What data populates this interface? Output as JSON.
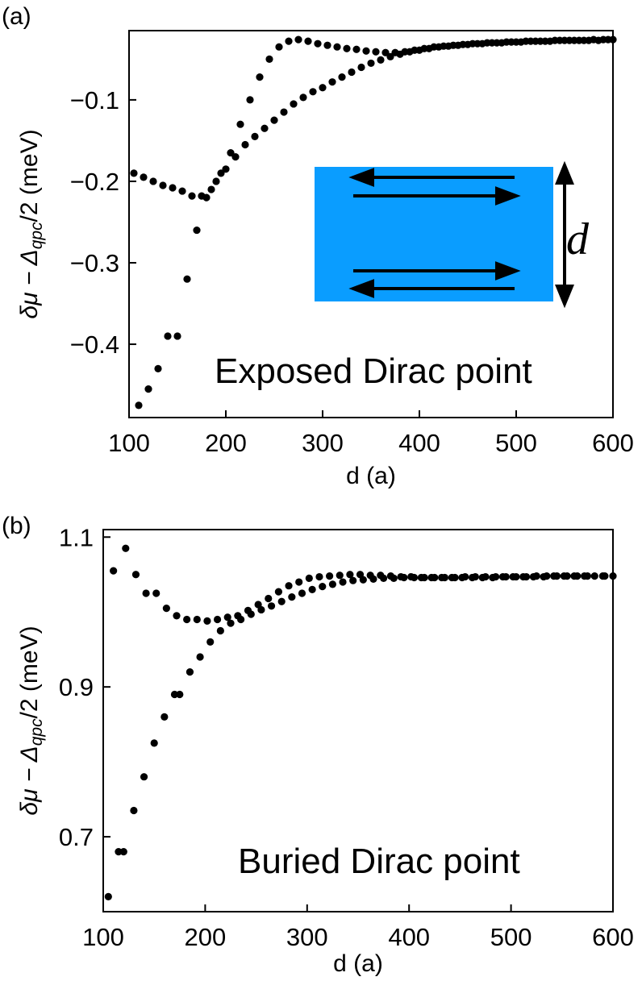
{
  "chart_data": [
    {
      "type": "scatter",
      "panel_label": "(a)",
      "title": "",
      "xlabel": "d (a)",
      "ylabel": "δμ − Δqpc/2 (meV)",
      "ylabel_parts": {
        "pre": "δμ − Δ",
        "sub": "qpc",
        "post": "/2 (meV)"
      },
      "xlim": [
        100,
        600
      ],
      "ylim": [
        -0.49,
        -0.015
      ],
      "xticks": [
        100,
        200,
        300,
        400,
        500,
        600
      ],
      "xtick_labels": [
        "100",
        "200",
        "300",
        "400",
        "500",
        "600"
      ],
      "yticks": [
        -0.4,
        -0.3,
        -0.2,
        -0.1
      ],
      "ytick_labels": [
        "−0.4",
        "−0.3",
        "−0.2",
        "−0.1"
      ],
      "grid": false,
      "legend": "none",
      "annotation": "Exposed Dirac point",
      "inset": {
        "description": "edge channel schematic",
        "fill_color": "#0a9dff",
        "label": "d"
      },
      "series": [
        {
          "color": "#000000",
          "x": [
            105,
            115,
            125,
            135,
            145,
            155,
            165,
            175,
            185,
            195,
            205,
            215,
            225,
            235,
            245,
            255,
            265,
            275,
            285,
            295,
            305,
            315,
            325,
            335,
            345,
            355,
            365,
            375,
            385,
            395,
            405,
            415,
            425,
            435,
            445,
            455,
            465,
            475,
            485,
            495,
            505,
            515,
            525,
            535,
            545,
            555,
            565,
            575,
            585,
            595
          ],
          "y": [
            -0.19,
            -0.195,
            -0.2,
            -0.205,
            -0.208,
            -0.212,
            -0.218,
            -0.218,
            -0.21,
            -0.19,
            -0.165,
            -0.13,
            -0.1,
            -0.072,
            -0.05,
            -0.035,
            -0.028,
            -0.026,
            -0.028,
            -0.031,
            -0.033,
            -0.035,
            -0.037,
            -0.038,
            -0.04,
            -0.041,
            -0.042,
            -0.042,
            -0.041,
            -0.039,
            -0.037,
            -0.035,
            -0.034,
            -0.033,
            -0.032,
            -0.031,
            -0.031,
            -0.03,
            -0.03,
            -0.029,
            -0.029,
            -0.028,
            -0.028,
            -0.028,
            -0.027,
            -0.027,
            -0.027,
            -0.027,
            -0.027,
            -0.026
          ]
        },
        {
          "color": "#000000",
          "x": [
            110,
            120,
            130,
            140,
            150,
            160,
            170,
            180,
            190,
            200,
            210,
            220,
            230,
            240,
            250,
            260,
            270,
            280,
            290,
            300,
            310,
            320,
            330,
            340,
            350,
            360,
            370,
            380,
            390,
            400,
            410,
            420,
            430,
            440,
            450,
            460,
            470,
            480,
            490,
            500,
            510,
            520,
            530,
            540,
            550,
            560,
            570,
            580,
            590,
            600
          ],
          "y": [
            -0.475,
            -0.455,
            -0.43,
            -0.39,
            -0.39,
            -0.32,
            -0.26,
            -0.22,
            -0.2,
            -0.185,
            -0.17,
            -0.155,
            -0.145,
            -0.135,
            -0.125,
            -0.115,
            -0.105,
            -0.097,
            -0.09,
            -0.085,
            -0.078,
            -0.072,
            -0.066,
            -0.06,
            -0.055,
            -0.051,
            -0.047,
            -0.044,
            -0.041,
            -0.039,
            -0.037,
            -0.035,
            -0.034,
            -0.033,
            -0.032,
            -0.031,
            -0.03,
            -0.03,
            -0.029,
            -0.029,
            -0.028,
            -0.028,
            -0.028,
            -0.027,
            -0.027,
            -0.027,
            -0.027,
            -0.026,
            -0.026,
            -0.026
          ]
        }
      ]
    },
    {
      "type": "scatter",
      "panel_label": "(b)",
      "title": "",
      "xlabel": "d (a)",
      "ylabel": "δμ − Δqpc/2 (meV)",
      "ylabel_parts": {
        "pre": "δμ − Δ",
        "sub": "qpc",
        "post": "/2 (meV)"
      },
      "xlim": [
        100,
        600
      ],
      "ylim": [
        0.6,
        1.11
      ],
      "xticks": [
        100,
        200,
        300,
        400,
        500,
        600
      ],
      "xtick_labels": [
        "100",
        "200",
        "300",
        "400",
        "500",
        "600"
      ],
      "yticks": [
        0.7,
        0.9,
        1.1
      ],
      "ytick_labels": [
        "0.7",
        "0.9",
        "1.1"
      ],
      "grid": false,
      "legend": "none",
      "annotation": "Buried Dirac point",
      "series": [
        {
          "color": "#000000",
          "x": [
            110,
            122,
            132,
            142,
            152,
            162,
            172,
            182,
            192,
            202,
            212,
            222,
            232,
            242,
            252,
            262,
            272,
            282,
            292,
            302,
            312,
            322,
            332,
            342,
            352,
            362,
            372,
            382,
            392,
            402,
            412,
            422,
            432,
            442,
            452,
            462,
            472,
            482,
            492,
            502,
            512,
            522,
            532,
            542,
            552,
            562,
            572,
            582,
            592,
            600
          ],
          "y": [
            1.055,
            1.085,
            1.05,
            1.025,
            1.025,
            1.005,
            0.995,
            0.99,
            0.99,
            0.988,
            0.99,
            0.993,
            0.995,
            1.002,
            1.01,
            1.018,
            1.027,
            1.035,
            1.04,
            1.045,
            1.047,
            1.048,
            1.049,
            1.05,
            1.05,
            1.049,
            1.049,
            1.048,
            1.047,
            1.047,
            1.046,
            1.046,
            1.046,
            1.046,
            1.046,
            1.046,
            1.046,
            1.046,
            1.047,
            1.047,
            1.047,
            1.047,
            1.047,
            1.048,
            1.048,
            1.048,
            1.048,
            1.048,
            1.048,
            1.048
          ]
        },
        {
          "color": "#000000",
          "x": [
            105,
            115,
            120,
            130,
            140,
            150,
            160,
            170,
            175,
            185,
            195,
            205,
            215,
            225,
            235,
            245,
            255,
            265,
            275,
            285,
            295,
            305,
            315,
            325,
            335,
            345,
            355,
            365,
            375,
            385,
            395,
            405,
            415,
            425,
            435,
            445,
            455,
            465,
            475,
            485,
            495,
            505,
            515,
            525,
            535,
            545,
            555,
            565,
            575,
            590
          ],
          "y": [
            0.62,
            0.68,
            0.68,
            0.735,
            0.78,
            0.825,
            0.86,
            0.89,
            0.89,
            0.92,
            0.94,
            0.96,
            0.975,
            0.985,
            0.99,
            0.997,
            1.003,
            1.008,
            1.014,
            1.02,
            1.025,
            1.03,
            1.034,
            1.037,
            1.04,
            1.042,
            1.043,
            1.044,
            1.045,
            1.045,
            1.046,
            1.046,
            1.046,
            1.046,
            1.046,
            1.046,
            1.047,
            1.047,
            1.047,
            1.047,
            1.047,
            1.047,
            1.047,
            1.048,
            1.048,
            1.048,
            1.048,
            1.048,
            1.048,
            1.048
          ]
        }
      ]
    }
  ]
}
